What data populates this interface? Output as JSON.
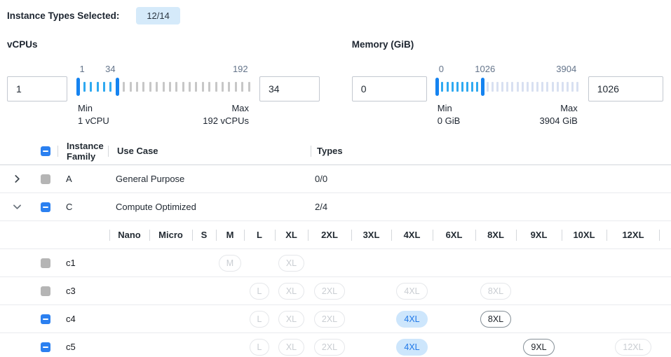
{
  "header": {
    "label": "Instance Types Selected:",
    "badge": "12/14"
  },
  "colors": {
    "accent_blue": "#2b80f0",
    "badge_bg": "#d5eafa",
    "pill_selected_bg": "#cde6fc",
    "pill_selected_text": "#2179e8",
    "slider_handle": "#1583f0",
    "slider_in_range": "#2fa9f0",
    "slider_out_cpu": "#c7c7c7",
    "slider_out_mem": "#d8e0f1"
  },
  "filters": [
    {
      "title": "vCPUs",
      "min_value": "1",
      "max_value": "34",
      "scale": [
        {
          "text": "1",
          "pct": 1
        },
        {
          "text": "34",
          "pct": 19
        },
        {
          "text": "192",
          "pct": 95
        }
      ],
      "min_label": "Min",
      "min_sub": "1 vCPU",
      "max_label": "Max",
      "max_sub": "192 vCPUs",
      "ticks": {
        "count": 27,
        "h1": 0,
        "h2": 6,
        "in": "#2fa9f0",
        "out": "#c7c7c7",
        "handle": "#1583f0"
      }
    },
    {
      "title": "Memory (GiB)",
      "min_value": "0",
      "max_value": "1026",
      "scale": [
        {
          "text": "0",
          "pct": 1
        },
        {
          "text": "1026",
          "pct": 34
        },
        {
          "text": "3904",
          "pct": 92
        }
      ],
      "min_label": "Min",
      "min_sub": "0 GiB",
      "max_label": "Max",
      "max_sub": "3904 GiB",
      "ticks": {
        "count": 29,
        "h1": 0,
        "h2": 9,
        "in": "#2fa9f0",
        "out": "#d8e0f1",
        "handle": "#1583f0"
      }
    }
  ],
  "table": {
    "header": {
      "family": "Instance Family",
      "use_case": "Use Case",
      "types": "Types",
      "checkbox": "indeterminate"
    },
    "size_columns": [
      "Nano",
      "Micro",
      "S",
      "M",
      "L",
      "XL",
      "2XL",
      "3XL",
      "4XL",
      "6XL",
      "8XL",
      "9XL",
      "10XL",
      "12XL"
    ],
    "size_column_widths": [
      57,
      61,
      34,
      40,
      44,
      47,
      62,
      57,
      59,
      61,
      58,
      65,
      64,
      76
    ],
    "rows": [
      {
        "kind": "family",
        "expanded": false,
        "checkbox": "disabled",
        "family": "A",
        "use_case": "General Purpose",
        "types": "0/0"
      },
      {
        "kind": "family",
        "expanded": true,
        "checkbox": "indeterminate",
        "family": "C",
        "use_case": "Compute Optimized",
        "types": "2/4"
      },
      {
        "kind": "size-header"
      },
      {
        "kind": "instance",
        "checkbox": "disabled",
        "name": "c1",
        "pills": [
          {
            "col": "M",
            "state": "disabled"
          },
          {
            "col": "XL",
            "state": "disabled"
          }
        ]
      },
      {
        "kind": "instance",
        "checkbox": "disabled",
        "name": "c3",
        "pills": [
          {
            "col": "L",
            "state": "disabled"
          },
          {
            "col": "XL",
            "state": "disabled"
          },
          {
            "col": "2XL",
            "state": "disabled"
          },
          {
            "col": "4XL",
            "state": "disabled"
          },
          {
            "col": "8XL",
            "state": "disabled"
          }
        ]
      },
      {
        "kind": "instance",
        "checkbox": "indeterminate",
        "name": "c4",
        "pills": [
          {
            "col": "L",
            "state": "disabled"
          },
          {
            "col": "XL",
            "state": "disabled"
          },
          {
            "col": "2XL",
            "state": "disabled"
          },
          {
            "col": "4XL",
            "state": "selected"
          },
          {
            "col": "8XL",
            "state": "enabled"
          }
        ]
      },
      {
        "kind": "instance",
        "checkbox": "indeterminate",
        "name": "c5",
        "pills": [
          {
            "col": "L",
            "state": "disabled"
          },
          {
            "col": "XL",
            "state": "disabled"
          },
          {
            "col": "2XL",
            "state": "disabled"
          },
          {
            "col": "4XL",
            "state": "selected"
          },
          {
            "col": "9XL",
            "state": "enabled"
          },
          {
            "col": "12XL",
            "state": "disabled"
          }
        ]
      }
    ]
  }
}
